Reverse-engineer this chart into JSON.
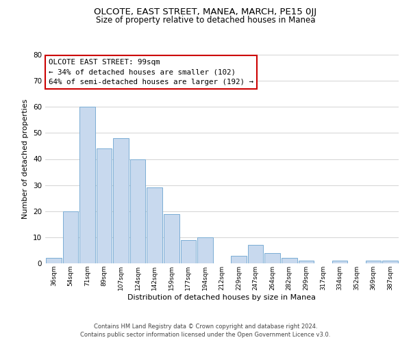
{
  "title": "OLCOTE, EAST STREET, MANEA, MARCH, PE15 0JJ",
  "subtitle": "Size of property relative to detached houses in Manea",
  "xlabel": "Distribution of detached houses by size in Manea",
  "ylabel": "Number of detached properties",
  "bar_color": "#c8d9ee",
  "bar_edge_color": "#7aadd4",
  "categories": [
    "36sqm",
    "54sqm",
    "71sqm",
    "89sqm",
    "107sqm",
    "124sqm",
    "142sqm",
    "159sqm",
    "177sqm",
    "194sqm",
    "212sqm",
    "229sqm",
    "247sqm",
    "264sqm",
    "282sqm",
    "299sqm",
    "317sqm",
    "334sqm",
    "352sqm",
    "369sqm",
    "387sqm"
  ],
  "values": [
    2,
    20,
    60,
    44,
    48,
    40,
    29,
    19,
    9,
    10,
    0,
    3,
    7,
    4,
    2,
    1,
    0,
    1,
    0,
    1,
    1
  ],
  "ylim": [
    0,
    80
  ],
  "yticks": [
    0,
    10,
    20,
    30,
    40,
    50,
    60,
    70,
    80
  ],
  "annotation_title": "OLCOTE EAST STREET: 99sqm",
  "annotation_line1": "← 34% of detached houses are smaller (102)",
  "annotation_line2": "64% of semi-detached houses are larger (192) →",
  "annotation_box_color": "#ffffff",
  "annotation_box_edge": "#cc0000",
  "footer_line1": "Contains HM Land Registry data © Crown copyright and database right 2024.",
  "footer_line2": "Contains public sector information licensed under the Open Government Licence v3.0.",
  "grid_color": "#cccccc",
  "bg_color": "#ffffff",
  "title_fontsize": 9.5,
  "subtitle_fontsize": 8.5
}
